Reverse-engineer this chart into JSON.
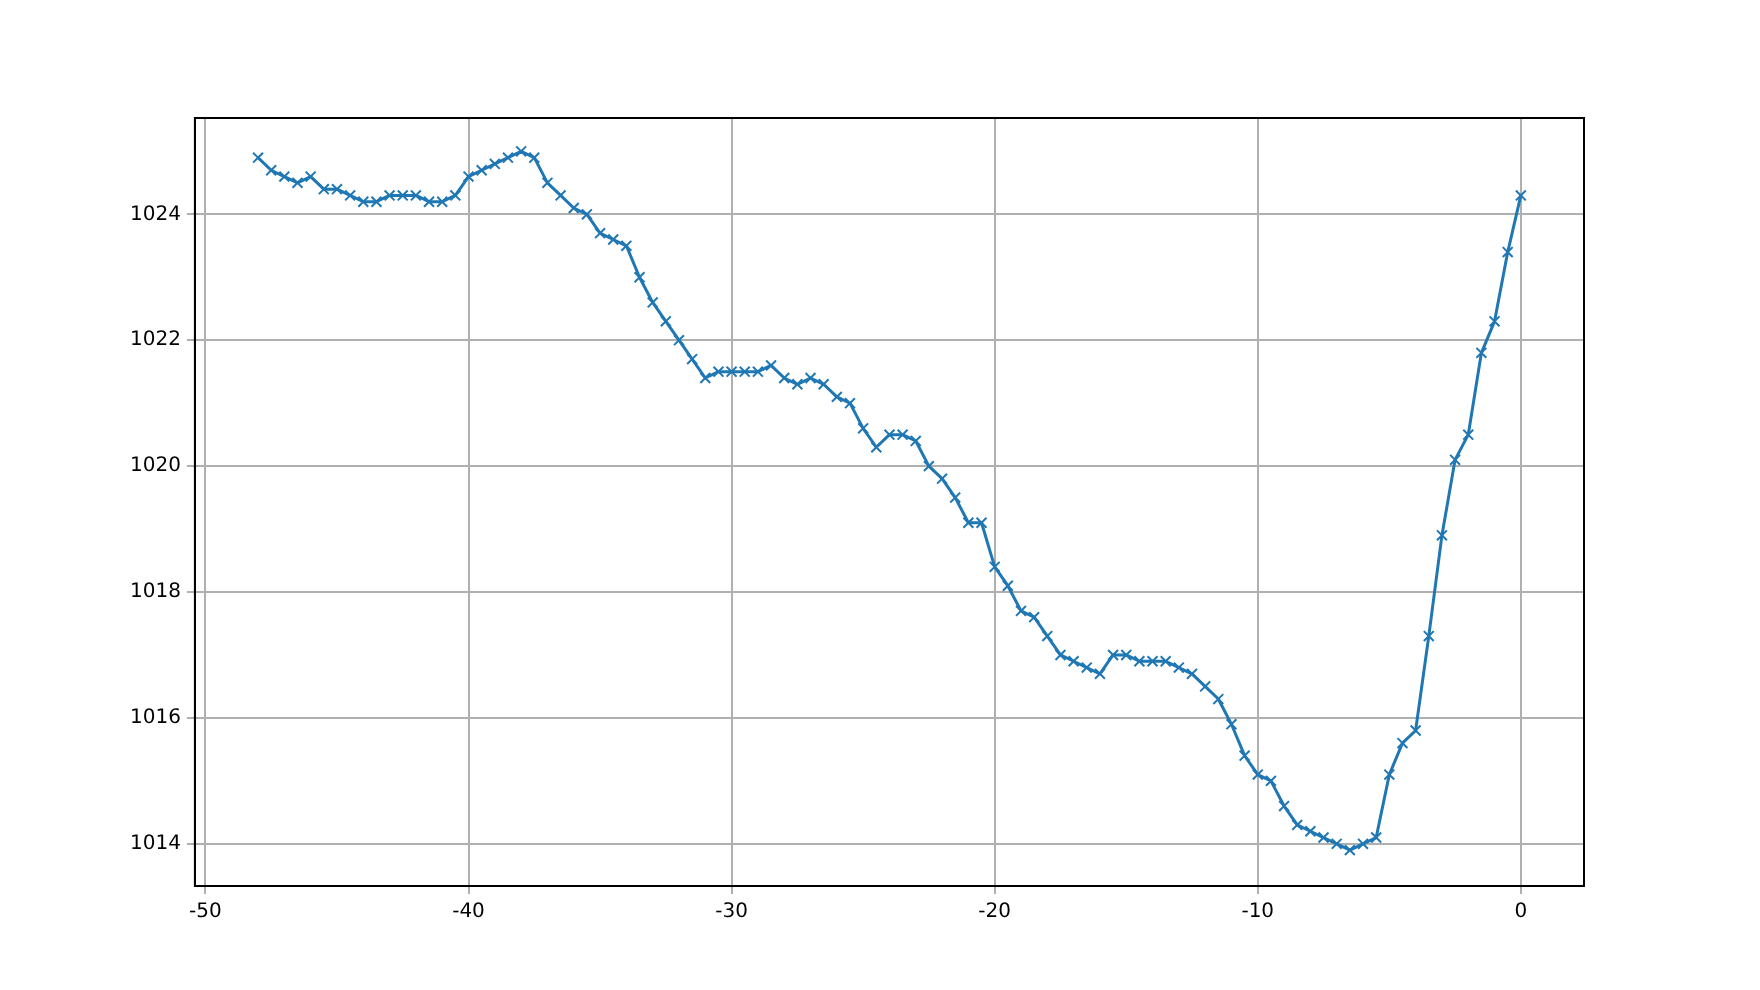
{
  "chart_data": {
    "type": "line",
    "x": [
      -48,
      -47.5,
      -47,
      -46.5,
      -46,
      -45.5,
      -45,
      -44.5,
      -44,
      -43.5,
      -43,
      -42.5,
      -42,
      -41.5,
      -41,
      -40.5,
      -40,
      -39.5,
      -39,
      -38.5,
      -38,
      -37.5,
      -37,
      -36.5,
      -36,
      -35.5,
      -35,
      -34.5,
      -34,
      -33.5,
      -33,
      -32.5,
      -32,
      -31.5,
      -31,
      -30.5,
      -30,
      -29.5,
      -29,
      -28.5,
      -28,
      -27.5,
      -27,
      -26.5,
      -26,
      -25.5,
      -25,
      -24.5,
      -24,
      -23.5,
      -23,
      -22.5,
      -22,
      -21.5,
      -21,
      -20.5,
      -20,
      -19.5,
      -19,
      -18.5,
      -18,
      -17.5,
      -17,
      -16.5,
      -16,
      -15.5,
      -15,
      -14.5,
      -14,
      -13.5,
      -13,
      -12.5,
      -12,
      -11.5,
      -11,
      -10.5,
      -10,
      -9.5,
      -9,
      -8.5,
      -8,
      -7.5,
      -7,
      -6.5,
      -6,
      -5.5,
      -5,
      -4.5,
      -4,
      -3.5,
      -3,
      -2.5,
      -2,
      -1.5,
      -1,
      -0.5,
      0
    ],
    "series": [
      {
        "color": "#1f77b4",
        "values": [
          1024.9,
          1024.7,
          1024.6,
          1024.5,
          1024.6,
          1024.4,
          1024.4,
          1024.3,
          1024.2,
          1024.2,
          1024.3,
          1024.3,
          1024.3,
          1024.2,
          1024.2,
          1024.3,
          1024.6,
          1024.7,
          1024.8,
          1024.9,
          1025.0,
          1024.9,
          1024.5,
          1024.3,
          1024.1,
          1024.0,
          1023.7,
          1023.6,
          1023.5,
          1023.0,
          1022.6,
          1022.3,
          1022.0,
          1021.7,
          1021.4,
          1021.5,
          1021.5,
          1021.5,
          1021.5,
          1021.6,
          1021.4,
          1021.3,
          1021.4,
          1021.3,
          1021.1,
          1021.0,
          1020.6,
          1020.3,
          1020.5,
          1020.5,
          1020.4,
          1020.0,
          1019.8,
          1019.5,
          1019.1,
          1019.1,
          1018.4,
          1018.1,
          1017.7,
          1017.6,
          1017.3,
          1017.0,
          1016.9,
          1016.8,
          1016.7,
          1017.0,
          1017.0,
          1016.9,
          1016.9,
          1016.9,
          1016.8,
          1016.7,
          1016.5,
          1016.3,
          1015.9,
          1015.4,
          1015.1,
          1015.0,
          1014.6,
          1014.3,
          1014.2,
          1014.1,
          1014.0,
          1013.9,
          1014.0,
          1014.1,
          1015.1,
          1015.6,
          1015.8,
          1017.3,
          1018.9,
          1020.1,
          1020.5,
          1021.8,
          1022.3,
          1023.4,
          1024.3
        ]
      }
    ],
    "xlim": [
      -50.4,
      2.4
    ],
    "xticks": [
      -50,
      -40,
      -30,
      -20,
      -10,
      0
    ],
    "ylim": [
      1013.33,
      1025.53
    ],
    "yticks": [
      1014,
      1016,
      1018,
      1020,
      1022,
      1024
    ],
    "grid": true,
    "legend": false,
    "marker": "cross",
    "line_style": "solid"
  }
}
